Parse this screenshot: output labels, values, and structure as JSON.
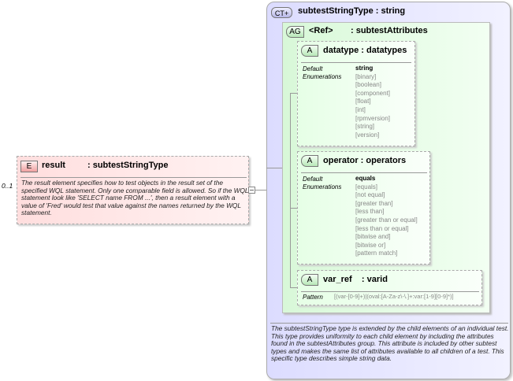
{
  "element": {
    "badge": "E",
    "name": "result",
    "type": ": subtestStringType",
    "cardinality": "0..1",
    "description": "The result element specifies how to test objects in the result set of the specified WQL statement.  Only one comparable field is allowed.  So if the WQL statement look like 'SELECT name FROM ...', then a result element with a value of 'Fred' would test that value against the names returned by the WQL statement."
  },
  "complex_type": {
    "badge": "CT+",
    "title": "subtestStringType : string",
    "description": "The subtestStringType type is extended by the child elements of an individual test.  This type provides uniformity to each child element by including the attributes found in the subtestAttributes group.  This attribute is included by other subtest types and makes the same list of attributes available to all children of a test.  This specific type describes simple string data."
  },
  "attribute_group": {
    "badge": "AG",
    "ref": "<Ref>",
    "name": ": subtestAttributes"
  },
  "attributes": [
    {
      "badge": "A",
      "title": "datatype : datatypes",
      "default_label": "Default",
      "default": "string",
      "enum_label": "Enumerations",
      "enumerations": [
        "[binary]",
        "[boolean]",
        "[component]",
        "[float]",
        "[int]",
        "[rpmversion]",
        "[string]",
        "[version]"
      ]
    },
    {
      "badge": "A",
      "title": "operator : operators",
      "default_label": "Default",
      "default": "equals",
      "enum_label": "Enumerations",
      "enumerations": [
        "[equals]",
        "[not equal]",
        "[greater than]",
        "[less than]",
        "[greater than or equal]",
        "[less than or equal]",
        "[bitwise and]",
        "[bitwise or]",
        "[pattern match]"
      ]
    },
    {
      "badge": "A",
      "title": "var_ref    : varid",
      "pattern_label": "Pattern",
      "pattern": "[(var-[0-9]+)|(oval:[A-Za-z\\-\\.]+:var:[1-9][0-9]*)]"
    }
  ]
}
